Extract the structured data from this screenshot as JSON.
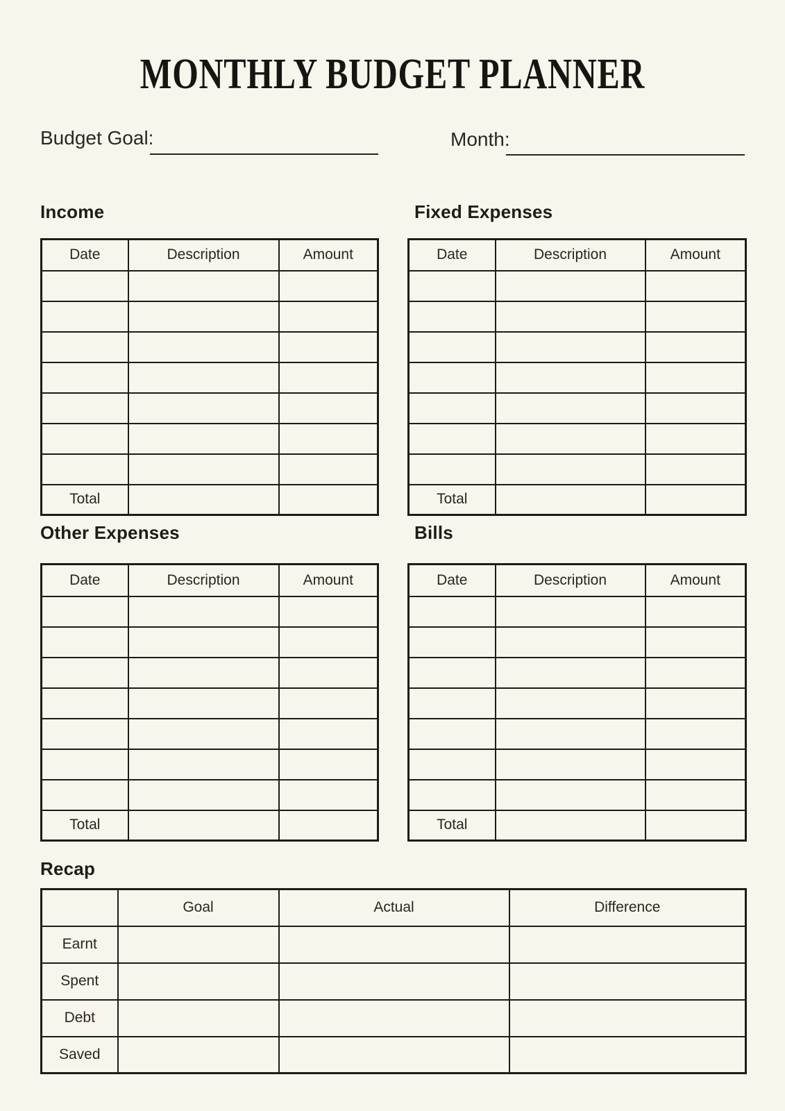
{
  "page": {
    "title": "MONTHLY BUDGET PLANNER",
    "background_color": "#F8F5ED",
    "ink_color": "#1D1B18"
  },
  "fields": {
    "budget_goal": {
      "label": "Budget Goal:",
      "value": ""
    },
    "month": {
      "label": "Month:",
      "value": ""
    }
  },
  "expense_tables": {
    "columns": [
      "Date",
      "Description",
      "Amount"
    ],
    "total_label": "Total",
    "empty_data_rows": 7,
    "sections": [
      {
        "id": "income",
        "title": "Income"
      },
      {
        "id": "fixed-expenses",
        "title": "Fixed Expenses"
      },
      {
        "id": "other-expenses",
        "title": "Other Expenses"
      },
      {
        "id": "bills",
        "title": "Bills"
      }
    ]
  },
  "recap": {
    "title": "Recap",
    "columns": [
      "",
      "Goal",
      "Actual",
      "Difference"
    ],
    "row_labels": [
      "Earnt",
      "Spent",
      "Debt",
      "Saved"
    ]
  }
}
